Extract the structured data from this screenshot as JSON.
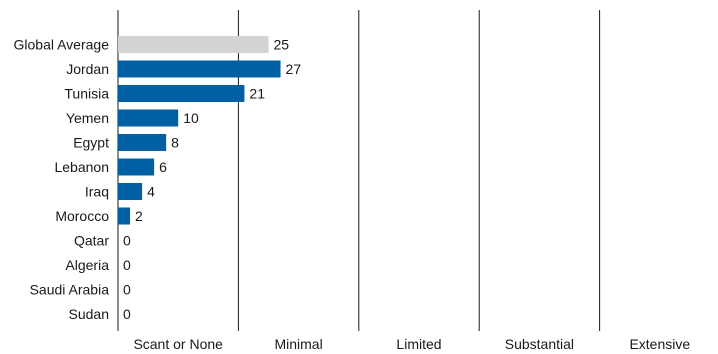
{
  "chart_data": {
    "type": "bar",
    "orientation": "horizontal",
    "categories": [
      "Global Average",
      "Jordan",
      "Tunisia",
      "Yemen",
      "Egypt",
      "Lebanon",
      "Iraq",
      "Morocco",
      "Qatar",
      "Algeria",
      "Saudi Arabia",
      "Sudan"
    ],
    "values": [
      25,
      27,
      21,
      10,
      8,
      6,
      4,
      2,
      0,
      0,
      0,
      0
    ],
    "x_bands": [
      "Scant or None",
      "Minimal",
      "Limited",
      "Substantial",
      "Extensive"
    ],
    "band_width_in_data_units": 20,
    "xlim": [
      0,
      100
    ],
    "colors": {
      "highlight": "#d3d3d5",
      "bar": "#0060a3",
      "grid": "#1a1a1a"
    },
    "highlight_category": "Global Average",
    "title": "",
    "xlabel": "",
    "ylabel": ""
  }
}
